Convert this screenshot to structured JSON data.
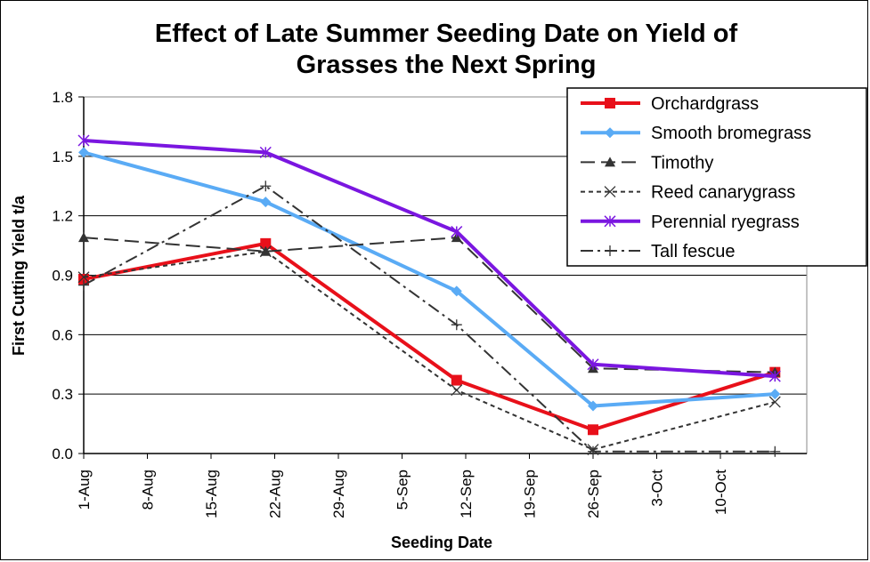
{
  "chart_data": {
    "type": "line",
    "title": "Effect of Late Summer Seeding Date on Yield of Grasses the Next Spring",
    "title_lines": [
      "Effect of Late Summer Seeding Date on Yield of",
      "Grasses the Next Spring"
    ],
    "xlabel": "Seeding Date",
    "ylabel": "First Cutting Yield t/a",
    "ylim": [
      0,
      1.8
    ],
    "yticks": [
      "0.0",
      "0.3",
      "0.6",
      "0.9",
      "1.2",
      "1.5",
      "1.8"
    ],
    "xticks": [
      "1-Aug",
      "8-Aug",
      "15-Aug",
      "22-Aug",
      "29-Aug",
      "5-Sep",
      "12-Sep",
      "19-Sep",
      "26-Sep",
      "3-Oct",
      "10-Oct"
    ],
    "x": [
      "1-Aug",
      "21-Aug",
      "11-Sep",
      "26-Sep",
      "16-Oct"
    ],
    "grid": "horizontal",
    "legend_position": "top-right",
    "series": [
      {
        "name": "Orchardgrass",
        "color": "#e8101a",
        "marker": "square",
        "dash": "solid",
        "values": [
          0.88,
          1.06,
          0.37,
          0.12,
          0.41
        ]
      },
      {
        "name": "Smooth bromegrass",
        "color": "#5aabf5",
        "marker": "diamond",
        "dash": "solid",
        "values": [
          1.52,
          1.27,
          0.82,
          0.24,
          0.3
        ]
      },
      {
        "name": "Timothy",
        "color": "#333333",
        "marker": "triangle",
        "dash": "longdash",
        "values": [
          1.09,
          1.02,
          1.09,
          0.43,
          0.41
        ]
      },
      {
        "name": "Reed canarygrass",
        "color": "#333333",
        "marker": "x",
        "dash": "shortdash",
        "values": [
          0.89,
          1.02,
          0.32,
          0.02,
          0.26
        ]
      },
      {
        "name": "Perennial ryegrass",
        "color": "#7a16e0",
        "marker": "asterisk",
        "dash": "solid",
        "values": [
          1.58,
          1.52,
          1.12,
          0.45,
          0.39
        ]
      },
      {
        "name": "Tall fescue",
        "color": "#333333",
        "marker": "plus",
        "dash": "dashdot",
        "values": [
          0.85,
          1.35,
          0.65,
          0.01,
          0.01
        ]
      }
    ]
  }
}
